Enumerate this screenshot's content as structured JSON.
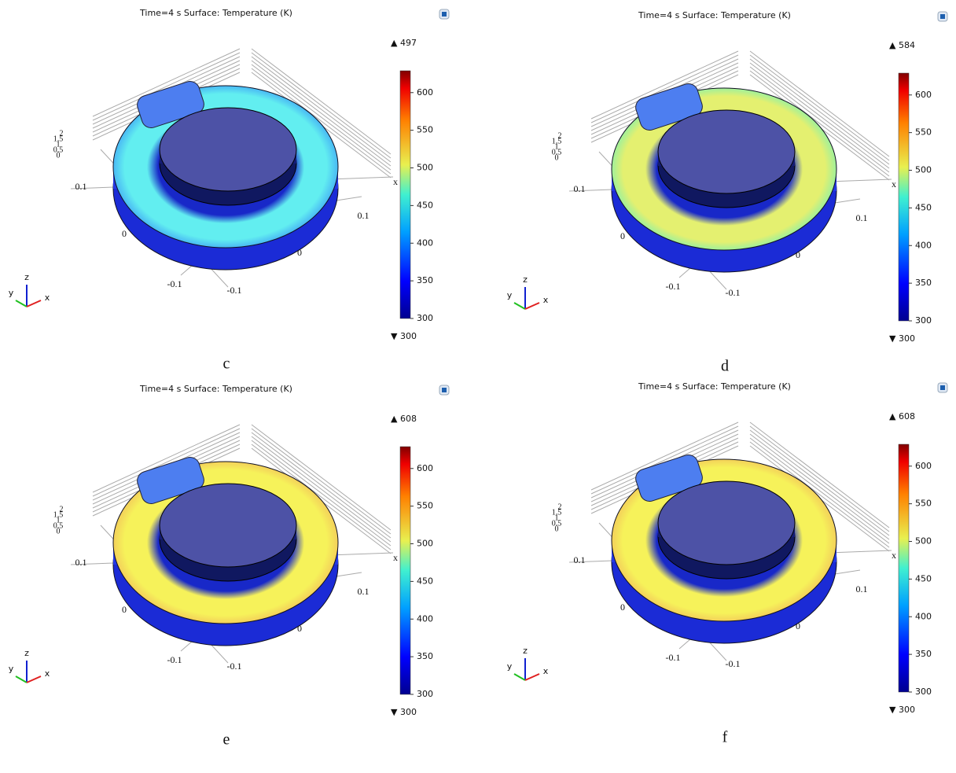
{
  "panels": [
    {
      "title": "Time=4 s   Surface: Temperature (K)",
      "max_label": "▲ 497",
      "min_label": "▼ 300",
      "colorbar_range": [
        300,
        629
      ],
      "colorbar_ticks": [
        300,
        350,
        400,
        450,
        500,
        550,
        600
      ],
      "ring_color": "#62eef0",
      "ring_edge": "#49b8f4",
      "axis_labels": [
        "0.1",
        "0",
        "-0.1",
        "-0.1",
        "0",
        "0.1",
        "x",
        "2",
        "1.5",
        "1",
        "0.5",
        "0"
      ],
      "triad": [
        "z",
        "y",
        "x"
      ],
      "caption": "c"
    },
    {
      "title": "Time=4 s   Surface: Temperature (K)",
      "max_label": "▲ 584",
      "min_label": "▼ 300",
      "colorbar_range": [
        300,
        629
      ],
      "colorbar_ticks": [
        300,
        350,
        400,
        450,
        500,
        550,
        600
      ],
      "ring_color": "#e4f070",
      "ring_edge": "#9ff09a",
      "axis_labels": [
        "0.1",
        "0",
        "-0.1",
        "-0.1",
        "0",
        "0.1",
        "x",
        "2",
        "1.5",
        "1",
        "0.5",
        "0"
      ],
      "triad": [
        "z",
        "y",
        "x"
      ],
      "caption": "d"
    },
    {
      "title": "Time=4 s   Surface: Temperature (K)",
      "max_label": "▲ 608",
      "min_label": "▼ 300",
      "colorbar_range": [
        300,
        629
      ],
      "colorbar_ticks": [
        300,
        350,
        400,
        450,
        500,
        550,
        600
      ],
      "ring_color": "#f6f25a",
      "ring_edge": "#f3d05a",
      "axis_labels": [
        "0.1",
        "0",
        "-0.1",
        "-0.1",
        "0",
        "0.1",
        "x",
        "2",
        "1.5",
        "1",
        "0.5",
        "0"
      ],
      "triad": [
        "z",
        "y",
        "x"
      ],
      "caption": "e"
    },
    {
      "title": "Time=4 s   Surface: Temperature (K)",
      "max_label": "▲ 608",
      "min_label": "▼ 300",
      "colorbar_range": [
        300,
        629
      ],
      "colorbar_ticks": [
        300,
        350,
        400,
        450,
        500,
        550,
        600
      ],
      "ring_color": "#f6f25a",
      "ring_edge": "#f3d05a",
      "axis_labels": [
        "0.1",
        "0",
        "-0.1",
        "-0.1",
        "0",
        "0.1",
        "x",
        "2",
        "1.5",
        "1",
        "0.5",
        "0"
      ],
      "triad": [
        "z",
        "y",
        "x"
      ],
      "caption": "f"
    }
  ]
}
